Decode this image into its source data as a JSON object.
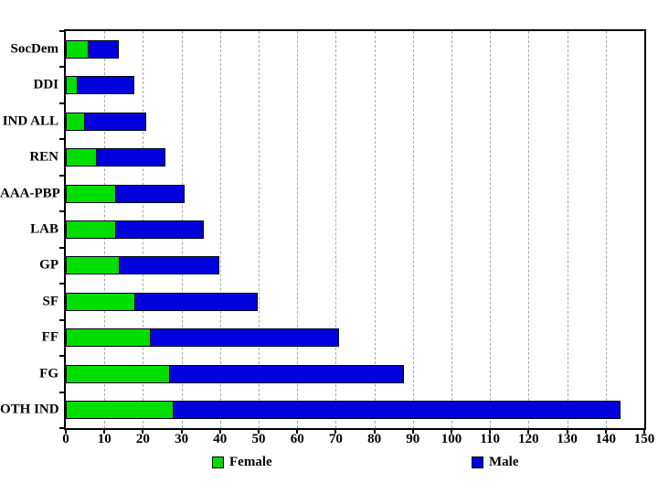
{
  "chart_data": {
    "type": "bar",
    "orientation": "horizontal",
    "stacked": true,
    "title": "",
    "xlabel": "",
    "ylabel": "",
    "xlim": [
      0,
      150
    ],
    "xticks": [
      0,
      10,
      20,
      30,
      40,
      50,
      60,
      70,
      80,
      90,
      100,
      110,
      120,
      130,
      140,
      150
    ],
    "grid": "vertical-dashed",
    "legend_position": "bottom",
    "categories": [
      "SocDem",
      "DDI",
      "IND ALL",
      "REN",
      "AAA-PBP",
      "LAB",
      "GP",
      "SF",
      "FF",
      "FG",
      "OTH IND"
    ],
    "series": [
      {
        "name": "Female",
        "color": "#00dd00",
        "values": [
          6,
          3,
          5,
          8,
          13,
          13,
          14,
          18,
          22,
          27,
          28
        ]
      },
      {
        "name": "Male",
        "color": "#0000dd",
        "values": [
          8,
          15,
          16,
          18,
          18,
          23,
          26,
          32,
          49,
          61,
          116
        ]
      }
    ],
    "totals": [
      14,
      18,
      21,
      26,
      31,
      36,
      40,
      50,
      71,
      88,
      144
    ]
  },
  "legend": {
    "items": [
      {
        "label": "Female",
        "color": "#00dd00"
      },
      {
        "label": "Male",
        "color": "#0000dd"
      }
    ]
  },
  "colors": {
    "bar_border": "#000014",
    "gridline": "#a9a9a9",
    "frame": "#000000",
    "background": "#ffffff"
  }
}
